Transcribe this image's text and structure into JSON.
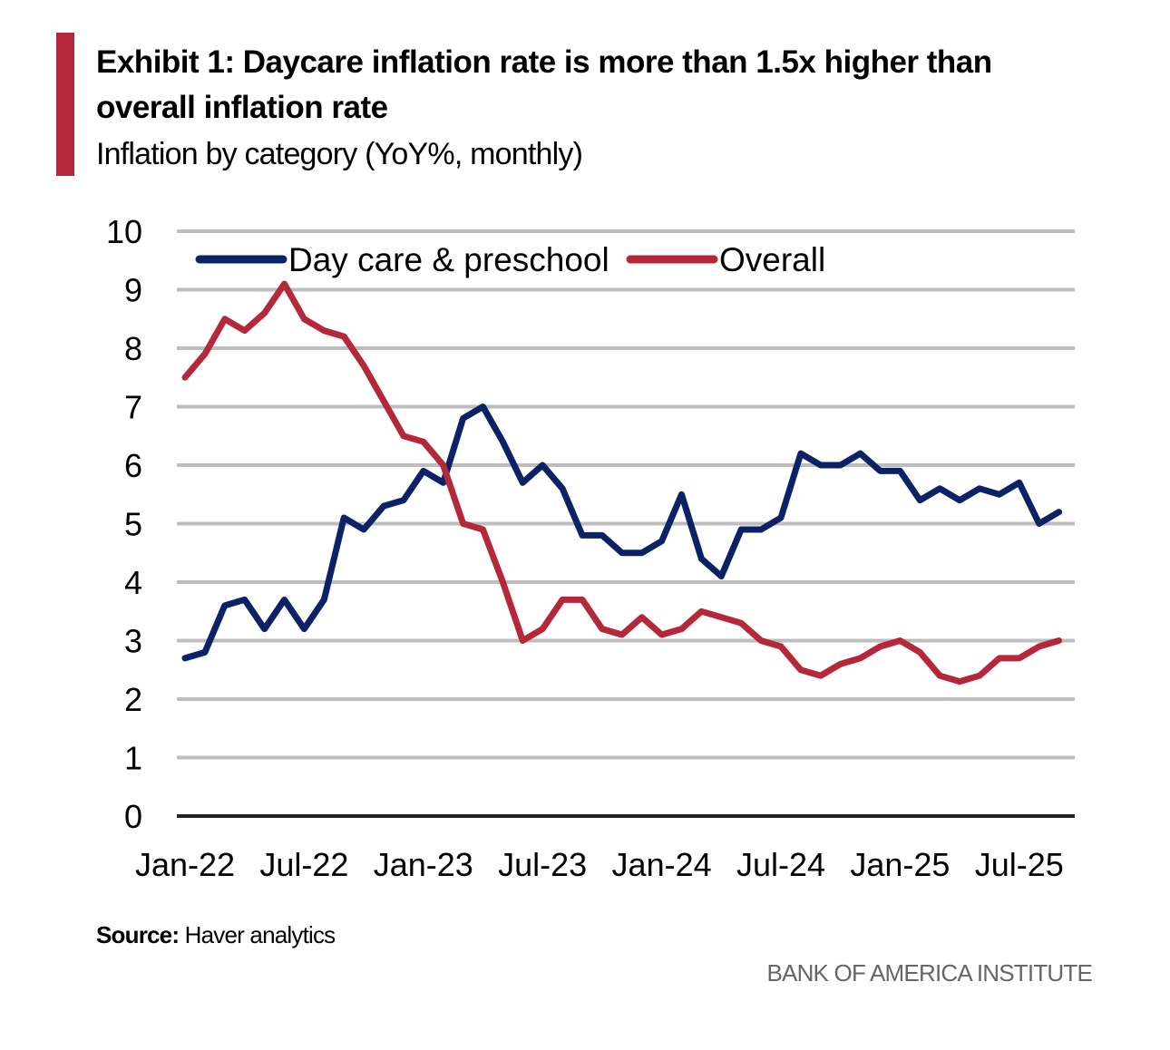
{
  "header": {
    "title": "Exhibit 1: Daycare inflation rate is more than 1.5x higher than overall inflation rate",
    "subtitle": "Inflation by category (YoY%, monthly)"
  },
  "footer": {
    "source_label": "Source:",
    "source_text": "Haver analytics",
    "brand": "BANK OF AMERICA INSTITUTE"
  },
  "colors": {
    "accent": "#b5283a",
    "daycare": "#0c2266",
    "overall": "#b5283a",
    "grid": "#bdbdbd"
  },
  "chart_data": {
    "type": "line",
    "title": "Exhibit 1: Daycare inflation rate is more than 1.5x higher than overall inflation rate",
    "subtitle": "Inflation by category (YoY%, monthly)",
    "xlabel": "",
    "ylabel": "",
    "ylim": [
      0,
      10
    ],
    "yticks": [
      0,
      1,
      2,
      3,
      4,
      5,
      6,
      7,
      8,
      9,
      10
    ],
    "xtick_labels": [
      "Jan-22",
      "Jul-22",
      "Jan-23",
      "Jul-23",
      "Jan-24",
      "Jul-24",
      "Jan-25",
      "Jul-25"
    ],
    "xtick_indices": [
      0,
      6,
      12,
      18,
      24,
      30,
      36,
      42
    ],
    "grid": true,
    "legend_position": "top",
    "x": [
      "Jan-22",
      "Feb-22",
      "Mar-22",
      "Apr-22",
      "May-22",
      "Jun-22",
      "Jul-22",
      "Aug-22",
      "Sep-22",
      "Oct-22",
      "Nov-22",
      "Dec-22",
      "Jan-23",
      "Feb-23",
      "Mar-23",
      "Apr-23",
      "May-23",
      "Jun-23",
      "Jul-23",
      "Aug-23",
      "Sep-23",
      "Oct-23",
      "Nov-23",
      "Dec-23",
      "Jan-24",
      "Feb-24",
      "Mar-24",
      "Apr-24",
      "May-24",
      "Jun-24",
      "Jul-24",
      "Aug-24",
      "Sep-24",
      "Oct-24",
      "Nov-24",
      "Dec-24",
      "Jan-25",
      "Feb-25",
      "Mar-25",
      "Apr-25",
      "May-25",
      "Jun-25",
      "Jul-25",
      "Aug-25",
      "Sep-25"
    ],
    "series": [
      {
        "name": "Day care & preschool",
        "color": "#0c2266",
        "values": [
          2.7,
          2.8,
          3.6,
          3.7,
          3.2,
          3.7,
          3.2,
          3.7,
          5.1,
          4.9,
          5.3,
          5.4,
          5.9,
          5.7,
          6.8,
          7.0,
          6.4,
          5.7,
          6.0,
          5.6,
          4.8,
          4.8,
          4.5,
          4.5,
          4.7,
          5.5,
          4.4,
          4.1,
          4.9,
          4.9,
          5.1,
          6.2,
          6.0,
          6.0,
          6.2,
          5.9,
          5.9,
          5.4,
          5.6,
          5.4,
          5.6,
          5.5,
          5.7,
          5.0,
          5.2
        ]
      },
      {
        "name": "Overall",
        "color": "#b5283a",
        "values": [
          7.5,
          7.9,
          8.5,
          8.3,
          8.6,
          9.1,
          8.5,
          8.3,
          8.2,
          7.7,
          7.1,
          6.5,
          6.4,
          6.0,
          5.0,
          4.9,
          4.0,
          3.0,
          3.2,
          3.7,
          3.7,
          3.2,
          3.1,
          3.4,
          3.1,
          3.2,
          3.5,
          3.4,
          3.3,
          3.0,
          2.9,
          2.5,
          2.4,
          2.6,
          2.7,
          2.9,
          3.0,
          2.8,
          2.4,
          2.3,
          2.4,
          2.7,
          2.7,
          2.9,
          3.0
        ]
      }
    ]
  }
}
